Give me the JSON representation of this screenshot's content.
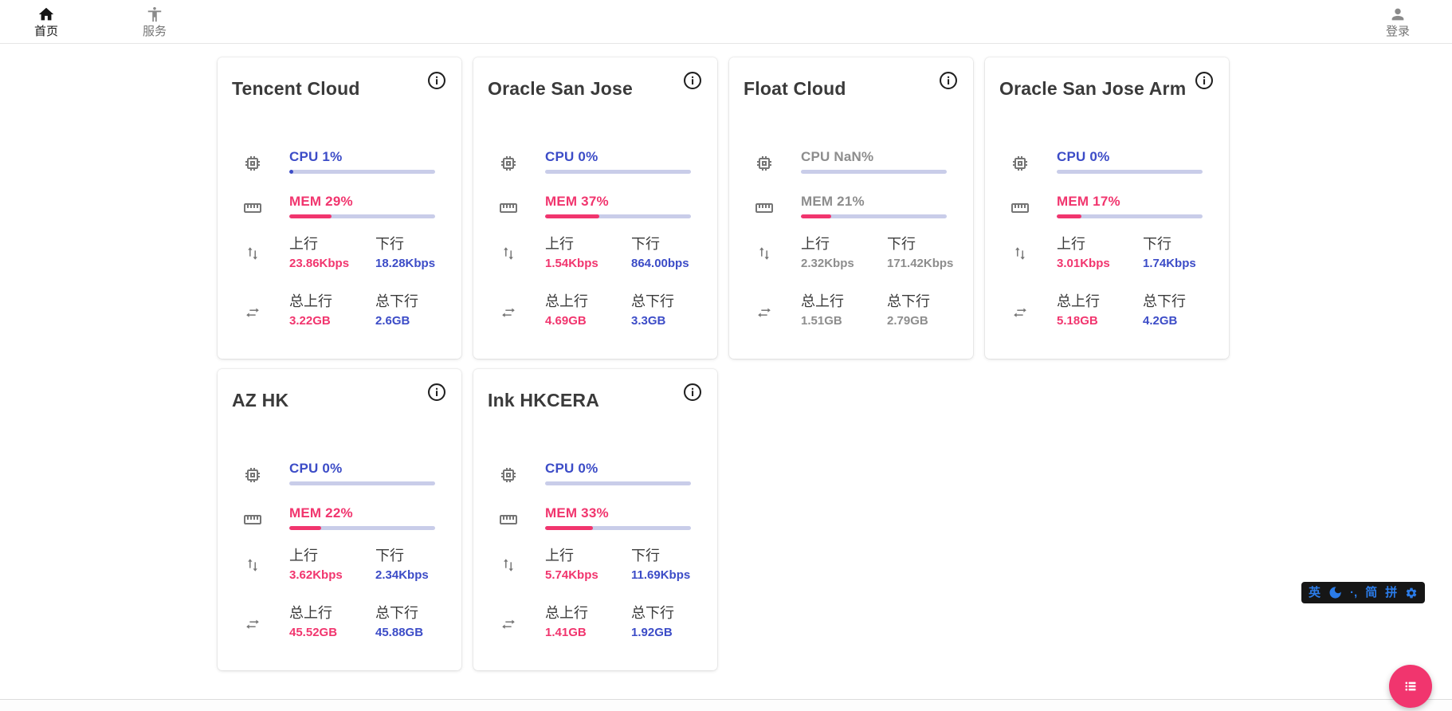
{
  "nav": {
    "home": {
      "label": "首页"
    },
    "service": {
      "label": "服务"
    },
    "login": {
      "label": "登录"
    }
  },
  "labels": {
    "up": "上行",
    "down": "下行",
    "total_up": "总上行",
    "total_down": "总下行"
  },
  "servers": [
    {
      "name": "Tencent Cloud",
      "cpu_label": "CPU 1%",
      "cpu_pct": 1,
      "mem_label": "MEM 29%",
      "mem_pct": 29,
      "up": "23.86Kbps",
      "down": "18.28Kbps",
      "total_up": "3.22GB",
      "total_down": "2.6GB",
      "muted": false
    },
    {
      "name": "Oracle San Jose",
      "cpu_label": "CPU 0%",
      "cpu_pct": 0,
      "mem_label": "MEM 37%",
      "mem_pct": 37,
      "up": "1.54Kbps",
      "down": "864.00bps",
      "total_up": "4.69GB",
      "total_down": "3.3GB",
      "muted": false
    },
    {
      "name": "Float Cloud",
      "cpu_label": "CPU NaN%",
      "cpu_pct": 0,
      "mem_label": "MEM 21%",
      "mem_pct": 21,
      "up": "2.32Kbps",
      "down": "171.42Kbps",
      "total_up": "1.51GB",
      "total_down": "2.79GB",
      "muted": true
    },
    {
      "name": "Oracle San Jose Arm",
      "cpu_label": "CPU 0%",
      "cpu_pct": 0,
      "mem_label": "MEM 17%",
      "mem_pct": 17,
      "up": "3.01Kbps",
      "down": "1.74Kbps",
      "total_up": "5.18GB",
      "total_down": "4.2GB",
      "muted": false
    },
    {
      "name": "AZ HK",
      "cpu_label": "CPU 0%",
      "cpu_pct": 0,
      "mem_label": "MEM 22%",
      "mem_pct": 22,
      "up": "3.62Kbps",
      "down": "2.34Kbps",
      "total_up": "45.52GB",
      "total_down": "45.88GB",
      "muted": false
    },
    {
      "name": "Ink HKCERA",
      "cpu_label": "CPU 0%",
      "cpu_pct": 0,
      "mem_label": "MEM 33%",
      "mem_pct": 33,
      "up": "5.74Kbps",
      "down": "11.69Kbps",
      "total_up": "1.41GB",
      "total_down": "1.92GB",
      "muted": false
    }
  ],
  "ime_bar": {
    "english_label": "英",
    "punct_label": "·,",
    "simplified_label": "简",
    "pinyin_label": "拼"
  },
  "colors": {
    "accent_blue": "#3c4cc7",
    "accent_pink": "#f1356e",
    "bar_track": "#c9cde9",
    "muted_text": "#8d8d8d"
  }
}
